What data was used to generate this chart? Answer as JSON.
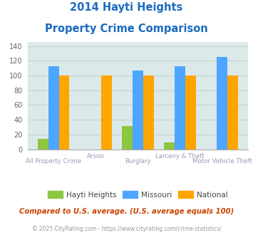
{
  "title_line1": "2014 Hayti Heights",
  "title_line2": "Property Crime Comparison",
  "categories": [
    "All Property Crime",
    "Arson",
    "Burglary",
    "Larceny & Theft",
    "Motor Vehicle Theft"
  ],
  "hayti_heights": [
    14,
    0,
    31,
    9,
    0
  ],
  "missouri": [
    113,
    0,
    107,
    113,
    125
  ],
  "national": [
    100,
    100,
    100,
    100,
    100
  ],
  "bar_colors": {
    "hayti_heights": "#8dc63f",
    "missouri": "#4da6ff",
    "national": "#ffa500"
  },
  "ylim": [
    0,
    145
  ],
  "yticks": [
    0,
    20,
    40,
    60,
    80,
    100,
    120,
    140
  ],
  "legend_labels": [
    "Hayti Heights",
    "Missouri",
    "National"
  ],
  "footnote1": "Compared to U.S. average. (U.S. average equals 100)",
  "footnote2": "© 2025 CityRating.com - https://www.cityrating.com/crime-statistics/",
  "title_color": "#1a6bbf",
  "footnote1_color": "#cc4400",
  "footnote2_color": "#999999",
  "xlabel_color": "#9999bb",
  "ylabel_color": "#666666",
  "background_color": "#dce9e9",
  "fig_background": "#ffffff",
  "bar_width": 0.25,
  "grid_color": "#c0d0d0",
  "xlabels_bottom": [
    "All Property Crime",
    "",
    "Burglary",
    "",
    "Motor Vehicle Theft"
  ],
  "xlabels_top": [
    "",
    "Arson",
    "",
    "Larceny & Theft",
    ""
  ]
}
